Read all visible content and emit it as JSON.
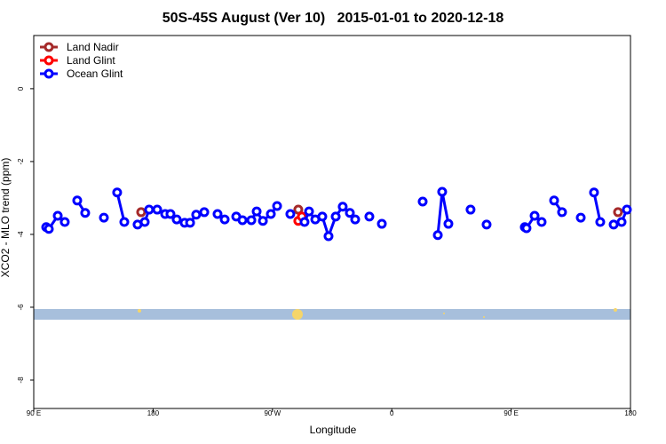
{
  "chart_data": {
    "type": "line",
    "title": "50S-45S August (Ver 10)   2015-01-01 to 2020-12-18",
    "x_label": "Longitude",
    "y_label": "XCO2 - MLO trend (ppm)",
    "xlim": [
      90,
      540
    ],
    "xticks": [
      {
        "value": 90,
        "label": "90 E"
      },
      180,
      {
        "value": 270,
        "label": "90 W"
      },
      {
        "value": 360,
        "label": "0"
      },
      {
        "value": 450,
        "label": "90 E"
      },
      {
        "value": 540,
        "label": "180"
      }
    ],
    "ylim": [
      -8.78,
      1.46
    ],
    "yticks": [
      0,
      -2,
      -4,
      -6,
      -8
    ],
    "legend": "top-left",
    "series": [
      {
        "name": "Land Nadir",
        "color": "#a52a2a",
        "x": [
          171.0,
          null,
          289.5,
          null,
          530.6
        ],
        "values": [
          -3.39,
          null,
          -3.32,
          null,
          -3.39
        ]
      },
      {
        "name": "Land Glint",
        "color": "#ff0000",
        "x": [
          289.5,
          292.2
        ],
        "values": [
          -3.63,
          -3.51
        ]
      },
      {
        "name": "Ocean Glint",
        "color": "#0000ff",
        "x": [
          99.4,
          101.4,
          108.1,
          113.4,
          null,
          122.8,
          128.8,
          null,
          142.9,
          null,
          152.9,
          158.3,
          null,
          168.3,
          173.7,
          177.0,
          183.1,
          189.1,
          193.1,
          197.8,
          203.8,
          207.9,
          212.5,
          218.6,
          null,
          228.6,
          234.0,
          null,
          242.7,
          247.4,
          254.1,
          258.1,
          262.8,
          268.8,
          273.5,
          null,
          283.5,
          null,
          294.2,
          297.6,
          302.3,
          307.6,
          312.3,
          317.7,
          323.0,
          328.4,
          332.4,
          null,
          343.1,
          null,
          352.5,
          null,
          383.3,
          null,
          394.7,
          398.0,
          402.7,
          null,
          419.4,
          null,
          431.5,
          null,
          460.3,
          461.6,
          467.7,
          473.0,
          null,
          482.4,
          488.4,
          null,
          502.5,
          null,
          512.5,
          517.2,
          null,
          527.3,
          533.3,
          537.3
        ],
        "values": [
          -3.8,
          -3.85,
          -3.49,
          -3.66,
          null,
          -3.07,
          -3.41,
          null,
          -3.54,
          null,
          -2.85,
          -3.66,
          null,
          -3.73,
          -3.66,
          -3.32,
          -3.32,
          -3.44,
          -3.44,
          -3.59,
          -3.68,
          -3.68,
          -3.46,
          -3.39,
          null,
          -3.44,
          -3.59,
          null,
          -3.51,
          -3.61,
          -3.61,
          -3.37,
          -3.63,
          -3.44,
          -3.22,
          null,
          -3.44,
          null,
          -3.66,
          -3.37,
          -3.59,
          -3.51,
          -4.05,
          -3.51,
          -3.24,
          -3.41,
          -3.59,
          null,
          -3.51,
          null,
          -3.71,
          null,
          -3.1,
          null,
          -4.02,
          -2.83,
          -3.71,
          null,
          -3.32,
          null,
          -3.73,
          null,
          -3.8,
          -3.83,
          -3.49,
          -3.66,
          null,
          -3.07,
          -3.39,
          null,
          -3.54,
          null,
          -2.85,
          -3.66,
          null,
          -3.73,
          -3.66,
          -3.32
        ]
      }
    ]
  }
}
